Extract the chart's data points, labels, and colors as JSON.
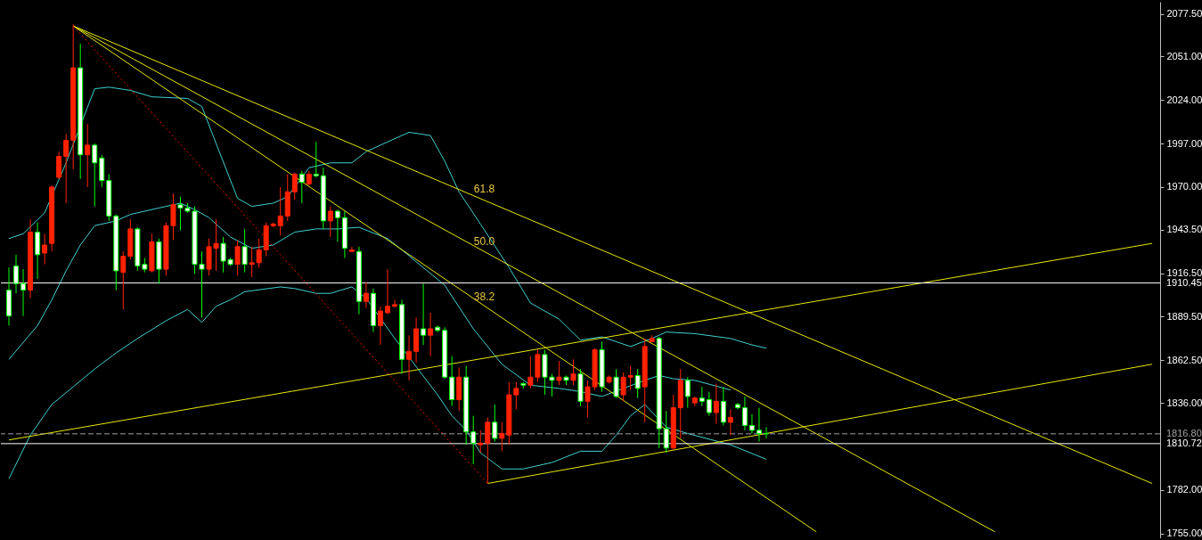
{
  "chart_data": {
    "type": "candlestick",
    "categories": [
      null,
      null,
      null,
      null,
      null,
      null,
      null,
      null,
      null,
      null,
      null,
      null,
      null,
      null,
      null,
      null,
      null,
      null,
      null,
      null,
      null,
      null,
      null,
      null,
      null,
      null,
      null,
      null,
      null,
      null,
      null,
      null,
      null,
      null,
      null,
      null,
      null,
      null,
      null,
      null,
      null,
      null,
      null,
      null,
      null,
      null,
      null,
      null,
      null,
      null,
      null,
      null,
      null,
      null,
      null,
      null,
      null,
      null,
      null,
      null,
      null,
      null,
      null,
      null,
      null,
      null,
      null,
      null,
      null,
      null,
      null,
      null,
      null,
      null,
      null,
      null,
      null,
      null,
      null,
      null,
      null,
      null,
      null,
      null,
      null,
      null,
      null,
      null,
      null,
      null,
      null,
      null,
      null,
      null,
      null,
      null,
      null,
      null,
      null,
      null,
      null,
      null,
      null,
      null,
      null,
      null,
      null,
      null,
      null,
      null,
      null,
      null,
      null,
      null,
      null,
      null,
      null,
      null,
      null,
      null,
      null,
      null,
      null,
      null,
      null,
      null,
      null,
      null,
      null,
      null,
      null,
      null,
      null,
      null,
      null,
      null,
      null,
      null,
      null,
      null,
      null,
      null,
      null,
      null,
      null,
      null,
      null,
      null,
      null,
      null,
      null,
      null,
      null,
      null,
      null,
      null,
      null,
      null,
      null,
      null,
      null
    ],
    "ohlc": [
      [
        1906,
        1920,
        1884,
        1890
      ],
      [
        1921,
        1928,
        1904,
        1910
      ],
      [
        1910,
        1919,
        1890,
        1906
      ],
      [
        1906,
        1950,
        1901,
        1942
      ],
      [
        1942,
        1948,
        1913,
        1928
      ],
      [
        1929,
        1941,
        1922,
        1934
      ],
      [
        1935,
        1971,
        1930,
        1970
      ],
      [
        1976,
        1992,
        1975,
        1989
      ],
      [
        1989,
        2003,
        1960,
        1999
      ],
      [
        1999,
        2071,
        1981,
        2044
      ],
      [
        2044,
        2059,
        1975,
        1990
      ],
      [
        1990,
        2009,
        1970,
        1996
      ],
      [
        1996,
        1997,
        1958,
        1985
      ],
      [
        1988,
        1990,
        1970,
        1974
      ],
      [
        1974,
        1978,
        1949,
        1952
      ],
      [
        1952,
        1953,
        1906,
        1918
      ],
      [
        1917,
        1930,
        1894,
        1927
      ],
      [
        1927,
        1950,
        1925,
        1944
      ],
      [
        1944,
        1945,
        1918,
        1921
      ],
      [
        1922,
        1926,
        1917,
        1919
      ],
      [
        1918,
        1941,
        1917,
        1936
      ],
      [
        1936,
        1938,
        1910,
        1919
      ],
      [
        1919,
        1948,
        1915,
        1946
      ],
      [
        1946,
        1966,
        1937,
        1959
      ],
      [
        1959,
        1964,
        1943,
        1957
      ],
      [
        1957,
        1960,
        1954,
        1955
      ],
      [
        1955,
        1958,
        1916,
        1922
      ],
      [
        1922,
        1930,
        1889,
        1919
      ],
      [
        1919,
        1938,
        1915,
        1933
      ],
      [
        1932,
        1950,
        1918,
        1935
      ],
      [
        1935,
        1939,
        1917,
        1924
      ],
      [
        1925,
        1926,
        1921,
        1922
      ],
      [
        1922,
        1937,
        1915,
        1933
      ],
      [
        1933,
        1944,
        1917,
        1922
      ],
      [
        1922,
        1933,
        1914,
        1923
      ],
      [
        1923,
        1938,
        1920,
        1931
      ],
      [
        1931,
        1948,
        1927,
        1946
      ],
      [
        1946,
        1948,
        1945,
        1947
      ],
      [
        1946,
        1970,
        1940,
        1952
      ],
      [
        1952,
        1978,
        1949,
        1967
      ],
      [
        1967,
        1979,
        1962,
        1978
      ],
      [
        1978,
        1980,
        1960,
        1973
      ],
      [
        1972,
        1980,
        1971,
        1978
      ],
      [
        1978,
        1998,
        1976,
        1977
      ],
      [
        1977,
        1982,
        1944,
        1949
      ],
      [
        1949,
        1958,
        1939,
        1955
      ],
      [
        1955,
        1956,
        1936,
        1951
      ],
      [
        1951,
        1955,
        1926,
        1932
      ],
      [
        1930,
        1933,
        1930,
        1931
      ],
      [
        1930,
        1933,
        1891,
        1899
      ],
      [
        1899,
        1911,
        1895,
        1904
      ],
      [
        1904,
        1907,
        1880,
        1884
      ],
      [
        1884,
        1896,
        1872,
        1893
      ],
      [
        1892,
        1919,
        1891,
        1896
      ],
      [
        1896,
        1900,
        1895,
        1897
      ],
      [
        1897,
        1900,
        1854,
        1863
      ],
      [
        1863,
        1878,
        1850,
        1868
      ],
      [
        1868,
        1889,
        1861,
        1882
      ],
      [
        1882,
        1910,
        1872,
        1878
      ],
      [
        1878,
        1892,
        1865,
        1882
      ],
      [
        1883,
        1884,
        1880,
        1881
      ],
      [
        1881,
        1883,
        1851,
        1852
      ],
      [
        1852,
        1865,
        1834,
        1838
      ],
      [
        1838,
        1858,
        1831,
        1852
      ],
      [
        1852,
        1859,
        1810,
        1818
      ],
      [
        1818,
        1828,
        1798,
        1811
      ],
      [
        1810,
        1819,
        1805,
        1811
      ],
      [
        1811,
        1827,
        1786,
        1824
      ],
      [
        1824,
        1835,
        1812,
        1814
      ],
      [
        1814,
        1824,
        1806,
        1817
      ],
      [
        1816,
        1849,
        1810,
        1841
      ],
      [
        1841,
        1849,
        1832,
        1845
      ],
      [
        1848,
        1849,
        1845,
        1847
      ],
      [
        1847,
        1865,
        1845,
        1852
      ],
      [
        1852,
        1869,
        1849,
        1866
      ],
      [
        1866,
        1869,
        1841,
        1852
      ],
      [
        1852,
        1854,
        1840,
        1850
      ],
      [
        1850,
        1862,
        1847,
        1852
      ],
      [
        1852,
        1853,
        1847,
        1850
      ],
      [
        1850,
        1863,
        1847,
        1854
      ],
      [
        1854,
        1857,
        1834,
        1837
      ],
      [
        1837,
        1850,
        1827,
        1846
      ],
      [
        1846,
        1870,
        1844,
        1869
      ],
      [
        1869,
        1874,
        1843,
        1846
      ],
      [
        1849,
        1853,
        1848,
        1852
      ],
      [
        1852,
        1857,
        1839,
        1840
      ],
      [
        1841,
        1855,
        1837,
        1852
      ],
      [
        1852,
        1859,
        1844,
        1853
      ],
      [
        1853,
        1857,
        1839,
        1845
      ],
      [
        1846,
        1876,
        1824,
        1871
      ],
      [
        1874,
        1878,
        1874,
        1876
      ],
      [
        1876,
        1877,
        1808,
        1820
      ],
      [
        1820,
        1831,
        1805,
        1808
      ],
      [
        1808,
        1841,
        1807,
        1833
      ],
      [
        1833,
        1857,
        1814,
        1850
      ],
      [
        1850,
        1852,
        1833,
        1840
      ],
      [
        1836,
        1840,
        1834,
        1839
      ],
      [
        1839,
        1846,
        1834,
        1837
      ],
      [
        1838,
        1843,
        1828,
        1830
      ],
      [
        1830,
        1848,
        1823,
        1837
      ],
      [
        1837,
        1846,
        1822,
        1824
      ],
      [
        1824,
        1832,
        1816,
        1827
      ],
      [
        1835,
        1836,
        1832,
        1833
      ],
      [
        1833,
        1840,
        1819,
        1822
      ],
      [
        1822,
        1829,
        1817,
        1819
      ],
      [
        1819,
        1833,
        1812,
        1817
      ],
      [
        1817,
        1821,
        1814,
        1816.8
      ],
      null,
      null,
      null,
      null,
      null,
      null,
      null,
      null,
      null,
      null,
      null,
      null,
      null,
      null,
      null,
      null,
      null,
      null,
      null,
      null,
      null,
      null,
      null,
      null,
      null,
      null,
      null,
      null,
      null,
      null,
      null,
      null,
      null,
      null,
      null,
      null,
      null,
      null,
      null,
      null,
      null,
      null,
      null,
      null,
      null,
      null,
      null,
      null,
      null,
      null,
      null,
      null,
      null,
      null
    ],
    "colors": [
      "#00ff00",
      "#00ff00",
      "#00ff00",
      "#ff2200",
      "#00ff00",
      "#ff2200",
      "#ff2200",
      "#ff2200",
      "#ff2200",
      "#ff2200",
      "#00ff00",
      "#ff2200",
      "#00ff00",
      "#00ff00",
      "#00ff00",
      "#00ff00",
      "#ff2200",
      "#ff2200",
      "#00ff00",
      "#00ff00",
      "#ff2200",
      "#00ff00",
      "#ff2200",
      "#ff2200",
      "#00ff00",
      "#00ff00",
      "#00ff00",
      "#00ff00",
      "#ff2200",
      "#ff2200",
      "#00ff00",
      "#00ff00",
      "#ff2200",
      "#00ff00",
      "#ff2200",
      "#ff2200",
      "#ff2200",
      "#ff2200",
      "#ff2200",
      "#ff2200",
      "#ff2200",
      "#00ff00",
      "#ff2200",
      "#00ff00",
      "#00ff00",
      "#ff2200",
      "#00ff00",
      "#00ff00",
      "#ff2200",
      "#00ff00",
      "#ff2200",
      "#00ff00",
      "#ff2200",
      "#ff2200",
      "#ff2200",
      "#00ff00",
      "#ff2200",
      "#ff2200",
      "#00ff00",
      "#ff2200",
      "#00ff00",
      "#00ff00",
      "#00ff00",
      "#ff2200",
      "#00ff00",
      "#00ff00",
      "#ff2200",
      "#ff2200",
      "#00ff00",
      "#ff2200",
      "#ff2200",
      "#ff2200",
      "#00ff00",
      "#ff2200",
      "#ff2200",
      "#00ff00",
      "#00ff00",
      "#ff2200",
      "#00ff00",
      "#ff2200",
      "#00ff00",
      "#ff2200",
      "#ff2200",
      "#00ff00",
      "#ff2200",
      "#00ff00",
      "#ff2200",
      "#ff2200",
      "#00ff00",
      "#ff2200",
      "#ff2200",
      "#00ff00",
      "#00ff00",
      "#ff2200",
      "#ff2200",
      "#00ff00",
      "#ff2200",
      "#00ff00",
      "#00ff00",
      "#ff2200",
      "#00ff00",
      "#ff2200",
      "#00ff00",
      "#00ff00",
      "#00ff00",
      "#00ff00",
      "#00ff00",
      null,
      null,
      null,
      null,
      null,
      null,
      null,
      null,
      null,
      null,
      null,
      null,
      null,
      null,
      null,
      null,
      null,
      null,
      null,
      null,
      null,
      null,
      null,
      null,
      null,
      null,
      null,
      null,
      null,
      null,
      null,
      null,
      null,
      null,
      null,
      null,
      null,
      null,
      null,
      null,
      null,
      null,
      null,
      null,
      null,
      null,
      null,
      null,
      null,
      null,
      null,
      null,
      null,
      null
    ],
    "series": [
      {
        "type": "line",
        "color": "#40d0d0",
        "values": [
          1938,
          null,
          1941,
          null,
          null,
          1954,
          null,
          null,
          1985,
          null,
          null,
          null,
          2031,
          null,
          2032,
          null,
          null,
          2030,
          null,
          null,
          2026,
          null,
          null,
          null,
          null,
          2025,
          null,
          2020,
          null,
          1997,
          null,
          null,
          1963,
          null,
          1958,
          null,
          null,
          1960,
          null,
          1964,
          null,
          null,
          1982,
          null,
          null,
          1985,
          null,
          null,
          1985,
          null,
          1992,
          null,
          null,
          1998,
          null,
          null,
          2004,
          null,
          null,
          2002,
          null,
          1986,
          null,
          1967,
          null,
          null,
          1947,
          null,
          null,
          null,
          1920,
          null,
          null,
          1898,
          null,
          null,
          null,
          1888,
          null,
          null,
          1875,
          null,
          null,
          1877,
          null,
          null,
          null,
          1871,
          null,
          null,
          1876,
          null,
          1880,
          null,
          null,
          null,
          1879,
          null,
          null,
          null,
          null,
          1876,
          null,
          null,
          1872,
          null,
          1870,
          null,
          null,
          null,
          null,
          null,
          null,
          null,
          null,
          null,
          null,
          null,
          null,
          null,
          null,
          null,
          null,
          null,
          null,
          null,
          null,
          null,
          null,
          null,
          null,
          null,
          null,
          null,
          null,
          null,
          null,
          null,
          null,
          null,
          null,
          null,
          null,
          null,
          null,
          null,
          null,
          null,
          null,
          null,
          null,
          null,
          null,
          null,
          null,
          null,
          null,
          null,
          null,
          null,
          null
        ]
      },
      {
        "type": "line",
        "color": "#40d0d0",
        "values": [
          1863,
          null,
          null,
          null,
          1884,
          null,
          1900,
          null,
          1918,
          null,
          1934,
          null,
          1946,
          null,
          null,
          1949,
          null,
          1953,
          null,
          null,
          null,
          1957,
          null,
          null,
          1960,
          null,
          1956,
          null,
          1951,
          null,
          null,
          1939,
          null,
          null,
          1932,
          null,
          null,
          1934,
          null,
          null,
          1942,
          null,
          null,
          1944,
          null,
          null,
          1944,
          null,
          null,
          1945,
          null,
          null,
          null,
          1938,
          null,
          1931,
          null,
          null,
          null,
          null,
          null,
          1909,
          null,
          null,
          null,
          1882,
          null,
          null,
          null,
          1860,
          null,
          null,
          null,
          1847,
          null,
          null,
          null,
          1845,
          null,
          null,
          1843,
          null,
          null,
          1840,
          null,
          null,
          1845,
          null,
          null,
          1850,
          null,
          1853,
          null,
          1851,
          null,
          null,
          1850,
          null,
          null,
          null,
          null,
          1844,
          null,
          null,
          null,
          null,
          null,
          null,
          null,
          null,
          null,
          null,
          null,
          null,
          null,
          null,
          null,
          null,
          null,
          null,
          null,
          null,
          null,
          null,
          null,
          null,
          null,
          null,
          null,
          null,
          null,
          null,
          null,
          null,
          null,
          null,
          null,
          null,
          null,
          null,
          null,
          null,
          null,
          null,
          null,
          null,
          null,
          null,
          null,
          null,
          null,
          null,
          null,
          null,
          null,
          null,
          null,
          null,
          null,
          null,
          null
        ]
      },
      {
        "type": "line",
        "color": "#40d0d0",
        "values": [
          1789,
          null,
          null,
          1816,
          null,
          null,
          1835,
          null,
          null,
          1846,
          null,
          null,
          1857,
          null,
          null,
          1867,
          null,
          null,
          1876,
          null,
          null,
          null,
          1887,
          null,
          null,
          1894,
          null,
          1886,
          null,
          1896,
          null,
          1900,
          null,
          1905,
          null,
          null,
          null,
          null,
          1908,
          null,
          1907,
          null,
          null,
          1904,
          null,
          1904,
          null,
          null,
          1908,
          null,
          1901,
          null,
          null,
          null,
          1876,
          null,
          null,
          null,
          null,
          null,
          1841,
          null,
          1828,
          null,
          1819,
          null,
          1805,
          null,
          null,
          1795,
          null,
          null,
          1795,
          null,
          null,
          null,
          1799,
          null,
          null,
          null,
          1806,
          null,
          null,
          1806,
          null,
          1816,
          null,
          1828,
          null,
          1835,
          null,
          null,
          1821,
          null,
          null,
          1817,
          null,
          null,
          null,
          null,
          null,
          1810,
          null,
          null,
          null,
          null,
          1801,
          null,
          null,
          null,
          null,
          null,
          null,
          null,
          null,
          null,
          null,
          null,
          null,
          null,
          null,
          null,
          null,
          null,
          null,
          null,
          null,
          null,
          null,
          null,
          null,
          null,
          null,
          null,
          null,
          null,
          null,
          null,
          null,
          null,
          null,
          null,
          null,
          null,
          null,
          null,
          null,
          null,
          null,
          null,
          null,
          null,
          null,
          null,
          null,
          null,
          null,
          null,
          null,
          null,
          null
        ]
      },
      {
        "type": "line",
        "color": "#e8e800",
        "values": [
          null,
          null,
          null,
          null,
          null,
          null,
          null,
          null,
          null,
          2070,
          null,
          null,
          null,
          null,
          null,
          null,
          null,
          null,
          null,
          null,
          null,
          null,
          null,
          null,
          null,
          null,
          null,
          null,
          null,
          null,
          null,
          null,
          null,
          null,
          null,
          null,
          null,
          null,
          null,
          null,
          null,
          null,
          null,
          null,
          null,
          null,
          null,
          null,
          null,
          null,
          null,
          null,
          null,
          null,
          null,
          null,
          null,
          null,
          null,
          null,
          null,
          null,
          null,
          null,
          null,
          null,
          null,
          null,
          null,
          null,
          null,
          null,
          null,
          null,
          null,
          null,
          null,
          null,
          null,
          null,
          null,
          null,
          null,
          null,
          null,
          null,
          null,
          null,
          null,
          null,
          null,
          null,
          null,
          null,
          null,
          null,
          null,
          null,
          null,
          null,
          null,
          null,
          null,
          null,
          null,
          null,
          null,
          null,
          null,
          null,
          null,
          null,
          null,
          null,
          null,
          null,
          null,
          null,
          null,
          null,
          null,
          null,
          null,
          null,
          null,
          null,
          null,
          null,
          null,
          null,
          null,
          null,
          null,
          null,
          null,
          null,
          null,
          null,
          null,
          null,
          null,
          null,
          null,
          null,
          null,
          null,
          null,
          null,
          null,
          null,
          null,
          null,
          null,
          null,
          null,
          null,
          null,
          null,
          null,
          null,
          1786
        ]
      },
      {
        "type": "line",
        "color": "#e8e800",
        "values": [
          null,
          null,
          null,
          null,
          null,
          null,
          null,
          null,
          null,
          2070,
          null,
          null,
          null,
          null,
          null,
          null,
          null,
          null,
          null,
          null,
          null,
          null,
          null,
          null,
          null,
          null,
          null,
          null,
          null,
          null,
          null,
          null,
          null,
          null,
          null,
          null,
          null,
          null,
          null,
          null,
          null,
          null,
          null,
          null,
          null,
          null,
          null,
          null,
          null,
          null,
          null,
          null,
          null,
          null,
          null,
          null,
          null,
          null,
          null,
          null,
          null,
          null,
          null,
          null,
          null,
          null,
          null,
          null,
          null,
          null,
          null,
          null,
          null,
          null,
          null,
          null,
          null,
          null,
          null,
          null,
          null,
          null,
          null,
          null,
          null,
          null,
          null,
          null,
          null,
          null,
          null,
          null,
          null,
          null,
          null,
          null,
          null,
          null,
          null,
          null,
          null,
          null,
          null,
          null,
          null,
          null,
          null,
          null,
          null,
          null,
          null,
          null,
          null,
          null,
          null,
          null,
          null,
          null,
          null,
          null,
          null,
          null,
          null,
          null,
          null,
          null,
          null,
          null,
          null,
          null,
          null,
          null,
          null,
          null,
          null,
          null,
          null,
          null,
          1756,
          null,
          null,
          null,
          null,
          null,
          null,
          null,
          null,
          null,
          null,
          null,
          null,
          null,
          null,
          null,
          null,
          null,
          null,
          null,
          null,
          null,
          null
        ]
      },
      {
        "type": "line",
        "color": "#e8e800",
        "values": [
          null,
          null,
          null,
          null,
          null,
          null,
          null,
          null,
          null,
          2070,
          null,
          null,
          null,
          null,
          null,
          null,
          null,
          null,
          null,
          null,
          null,
          null,
          null,
          null,
          null,
          null,
          null,
          null,
          null,
          null,
          null,
          null,
          null,
          null,
          null,
          null,
          null,
          null,
          null,
          null,
          null,
          null,
          null,
          null,
          null,
          null,
          null,
          null,
          null,
          null,
          null,
          null,
          null,
          null,
          null,
          null,
          null,
          null,
          null,
          null,
          null,
          null,
          null,
          null,
          null,
          null,
          null,
          null,
          null,
          null,
          null,
          null,
          null,
          null,
          null,
          null,
          null,
          null,
          null,
          null,
          null,
          null,
          null,
          null,
          null,
          null,
          null,
          null,
          null,
          null,
          null,
          null,
          null,
          null,
          null,
          null,
          null,
          null,
          null,
          null,
          null,
          null,
          null,
          null,
          null,
          null,
          null,
          null,
          null,
          null,
          null,
          null,
          null,
          1756,
          null,
          null,
          null,
          null,
          null,
          null,
          null,
          null,
          null,
          null,
          null,
          null,
          null,
          null,
          null,
          null,
          null,
          null,
          null,
          null,
          null,
          null,
          null,
          null,
          null,
          null,
          null,
          null,
          null,
          null,
          null,
          null,
          null,
          null,
          null,
          null,
          null,
          null,
          null,
          null,
          null,
          null,
          null,
          null,
          null,
          null,
          null
        ]
      },
      {
        "type": "line",
        "color": "#ff0000",
        "line_style": "dotted",
        "values": [
          null,
          null,
          null,
          null,
          null,
          null,
          null,
          null,
          null,
          2070,
          null,
          null,
          null,
          null,
          null,
          null,
          null,
          null,
          null,
          null,
          null,
          null,
          null,
          null,
          null,
          null,
          null,
          null,
          null,
          null,
          null,
          null,
          null,
          null,
          null,
          null,
          null,
          null,
          null,
          null,
          null,
          null,
          null,
          null,
          null,
          null,
          null,
          null,
          null,
          null,
          null,
          null,
          null,
          null,
          null,
          null,
          null,
          null,
          null,
          null,
          null,
          null,
          null,
          null,
          null,
          null,
          null,
          1786,
          null,
          null,
          null,
          null,
          null,
          null,
          null,
          null,
          null,
          null,
          null,
          null,
          null,
          null,
          null,
          null,
          null,
          null,
          null,
          null,
          null,
          null,
          null,
          null,
          null,
          null,
          null,
          null,
          null,
          null,
          null,
          null,
          null,
          null,
          null,
          null,
          null,
          null,
          null,
          null,
          null,
          null,
          null,
          null,
          null,
          null,
          null,
          null,
          null,
          null,
          null,
          null,
          null,
          null,
          null,
          null,
          null,
          null,
          null,
          null,
          null,
          null,
          null,
          null,
          null,
          null,
          null,
          null,
          null,
          null,
          null,
          null,
          null,
          null,
          null,
          null,
          null,
          null,
          null,
          null,
          null,
          null,
          null,
          null,
          null,
          null,
          null,
          null,
          null,
          null,
          null,
          null,
          null
        ]
      },
      {
        "type": "line",
        "color": "#e8e800",
        "values": [
          1813,
          null,
          null,
          null,
          null,
          null,
          null,
          null,
          null,
          null,
          null,
          null,
          null,
          null,
          null,
          null,
          null,
          null,
          null,
          null,
          null,
          null,
          null,
          null,
          null,
          null,
          null,
          null,
          null,
          null,
          null,
          null,
          null,
          null,
          null,
          null,
          null,
          null,
          null,
          null,
          null,
          null,
          null,
          null,
          null,
          null,
          null,
          null,
          null,
          null,
          null,
          null,
          null,
          null,
          null,
          null,
          null,
          null,
          null,
          null,
          null,
          null,
          null,
          null,
          null,
          null,
          null,
          null,
          null,
          null,
          null,
          null,
          null,
          null,
          null,
          null,
          null,
          null,
          null,
          null,
          null,
          null,
          null,
          null,
          null,
          null,
          null,
          null,
          null,
          null,
          null,
          null,
          null,
          null,
          null,
          null,
          null,
          null,
          null,
          null,
          null,
          null,
          null,
          null,
          null,
          null,
          null,
          null,
          null,
          null,
          null,
          null,
          null,
          null,
          null,
          null,
          null,
          null,
          null,
          null,
          null,
          null,
          null,
          null,
          null,
          null,
          null,
          null,
          null,
          null,
          null,
          null,
          null,
          null,
          null,
          null,
          null,
          null,
          null,
          null,
          null,
          null,
          null,
          null,
          null,
          null,
          null,
          null,
          null,
          null,
          null,
          null,
          null,
          null,
          null,
          null,
          null,
          null,
          null,
          null,
          1935
        ]
      },
      {
        "type": "line",
        "color": "#e8e800",
        "values": [
          null,
          null,
          null,
          null,
          null,
          null,
          null,
          null,
          null,
          null,
          null,
          null,
          null,
          null,
          null,
          null,
          null,
          null,
          null,
          null,
          null,
          null,
          null,
          null,
          null,
          null,
          null,
          null,
          null,
          null,
          null,
          null,
          null,
          null,
          null,
          null,
          null,
          null,
          null,
          null,
          null,
          null,
          null,
          null,
          null,
          null,
          null,
          null,
          null,
          null,
          null,
          null,
          null,
          null,
          null,
          null,
          null,
          null,
          null,
          null,
          null,
          null,
          null,
          null,
          null,
          null,
          null,
          1786,
          null,
          null,
          null,
          null,
          null,
          null,
          null,
          null,
          null,
          null,
          null,
          null,
          null,
          null,
          null,
          null,
          null,
          null,
          null,
          null,
          null,
          null,
          null,
          null,
          null,
          null,
          null,
          null,
          null,
          null,
          null,
          null,
          null,
          null,
          null,
          null,
          null,
          null,
          null,
          null,
          null,
          null,
          null,
          null,
          null,
          null,
          null,
          null,
          null,
          null,
          null,
          null,
          null,
          null,
          null,
          null,
          null,
          null,
          null,
          null,
          null,
          null,
          null,
          null,
          null,
          null,
          null,
          null,
          null,
          null,
          null,
          null,
          null,
          null,
          null,
          null,
          null,
          null,
          null,
          null,
          null,
          null,
          null,
          null,
          null,
          null,
          null,
          null,
          null,
          null,
          null,
          null,
          1860
        ]
      }
    ],
    "ylim": [
      1752,
      2085
    ],
    "yticks": [
      {
        "value": 2077.5,
        "label": "2077.50"
      },
      {
        "value": 2051,
        "label": "2051.00"
      },
      {
        "value": 2024,
        "label": "2024.00"
      },
      {
        "value": 1997,
        "label": "1997.00"
      },
      {
        "value": 1970,
        "label": "1970.00"
      },
      {
        "value": 1943.5,
        "label": "1943.50"
      },
      {
        "value": 1916.5,
        "label": "1916.50"
      },
      {
        "value": 1889.5,
        "label": "1889.50"
      },
      {
        "value": 1862.5,
        "label": "1862.50"
      },
      {
        "value": 1836,
        "label": "1836.00"
      },
      {
        "value": 1782,
        "label": "1782.00"
      },
      {
        "value": 1755,
        "label": "1755.00"
      }
    ],
    "tick_labels": "y",
    "ref_lines": [
      {
        "axis": "y",
        "value": 1910.45,
        "label": "1910.45",
        "color": "#ffffff"
      },
      {
        "axis": "y",
        "value": 1816.8,
        "label": "1816.80",
        "color": "#a0a0a0",
        "line_style": "dashed"
      },
      {
        "axis": "y",
        "value": 1810.72,
        "label": "1810.72",
        "color": "#ffffff"
      }
    ],
    "annotations": [
      "61.8",
      "50.0",
      "38.2"
    ]
  }
}
